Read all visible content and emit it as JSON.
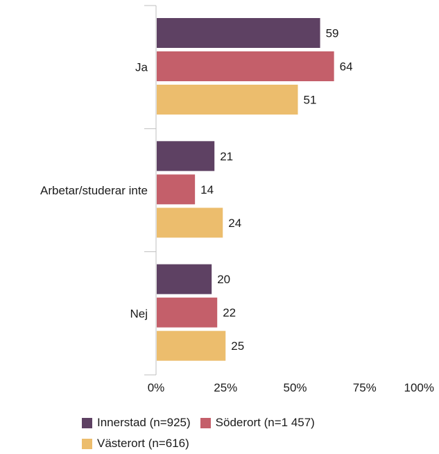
{
  "chart_data": {
    "type": "bar",
    "orientation": "horizontal",
    "categories": [
      "Ja",
      "Arbetar/studerar inte",
      "Nej"
    ],
    "series": [
      {
        "name": "Innerstad (n=925)",
        "color": "#5e4163",
        "values": [
          59,
          21,
          20
        ]
      },
      {
        "name": "Söderort (n=1 457)",
        "color": "#c45f6a",
        "values": [
          64,
          14,
          22
        ]
      },
      {
        "name": "Västerort (n=616)",
        "color": "#ecbd6d",
        "values": [
          51,
          24,
          25
        ]
      }
    ],
    "xticks": [
      "0%",
      "25%",
      "50%",
      "75%",
      "100%"
    ],
    "xlim": [
      0,
      100
    ],
    "title": "",
    "xlabel": "",
    "ylabel": "",
    "grid": false,
    "legend_position": "bottom"
  }
}
